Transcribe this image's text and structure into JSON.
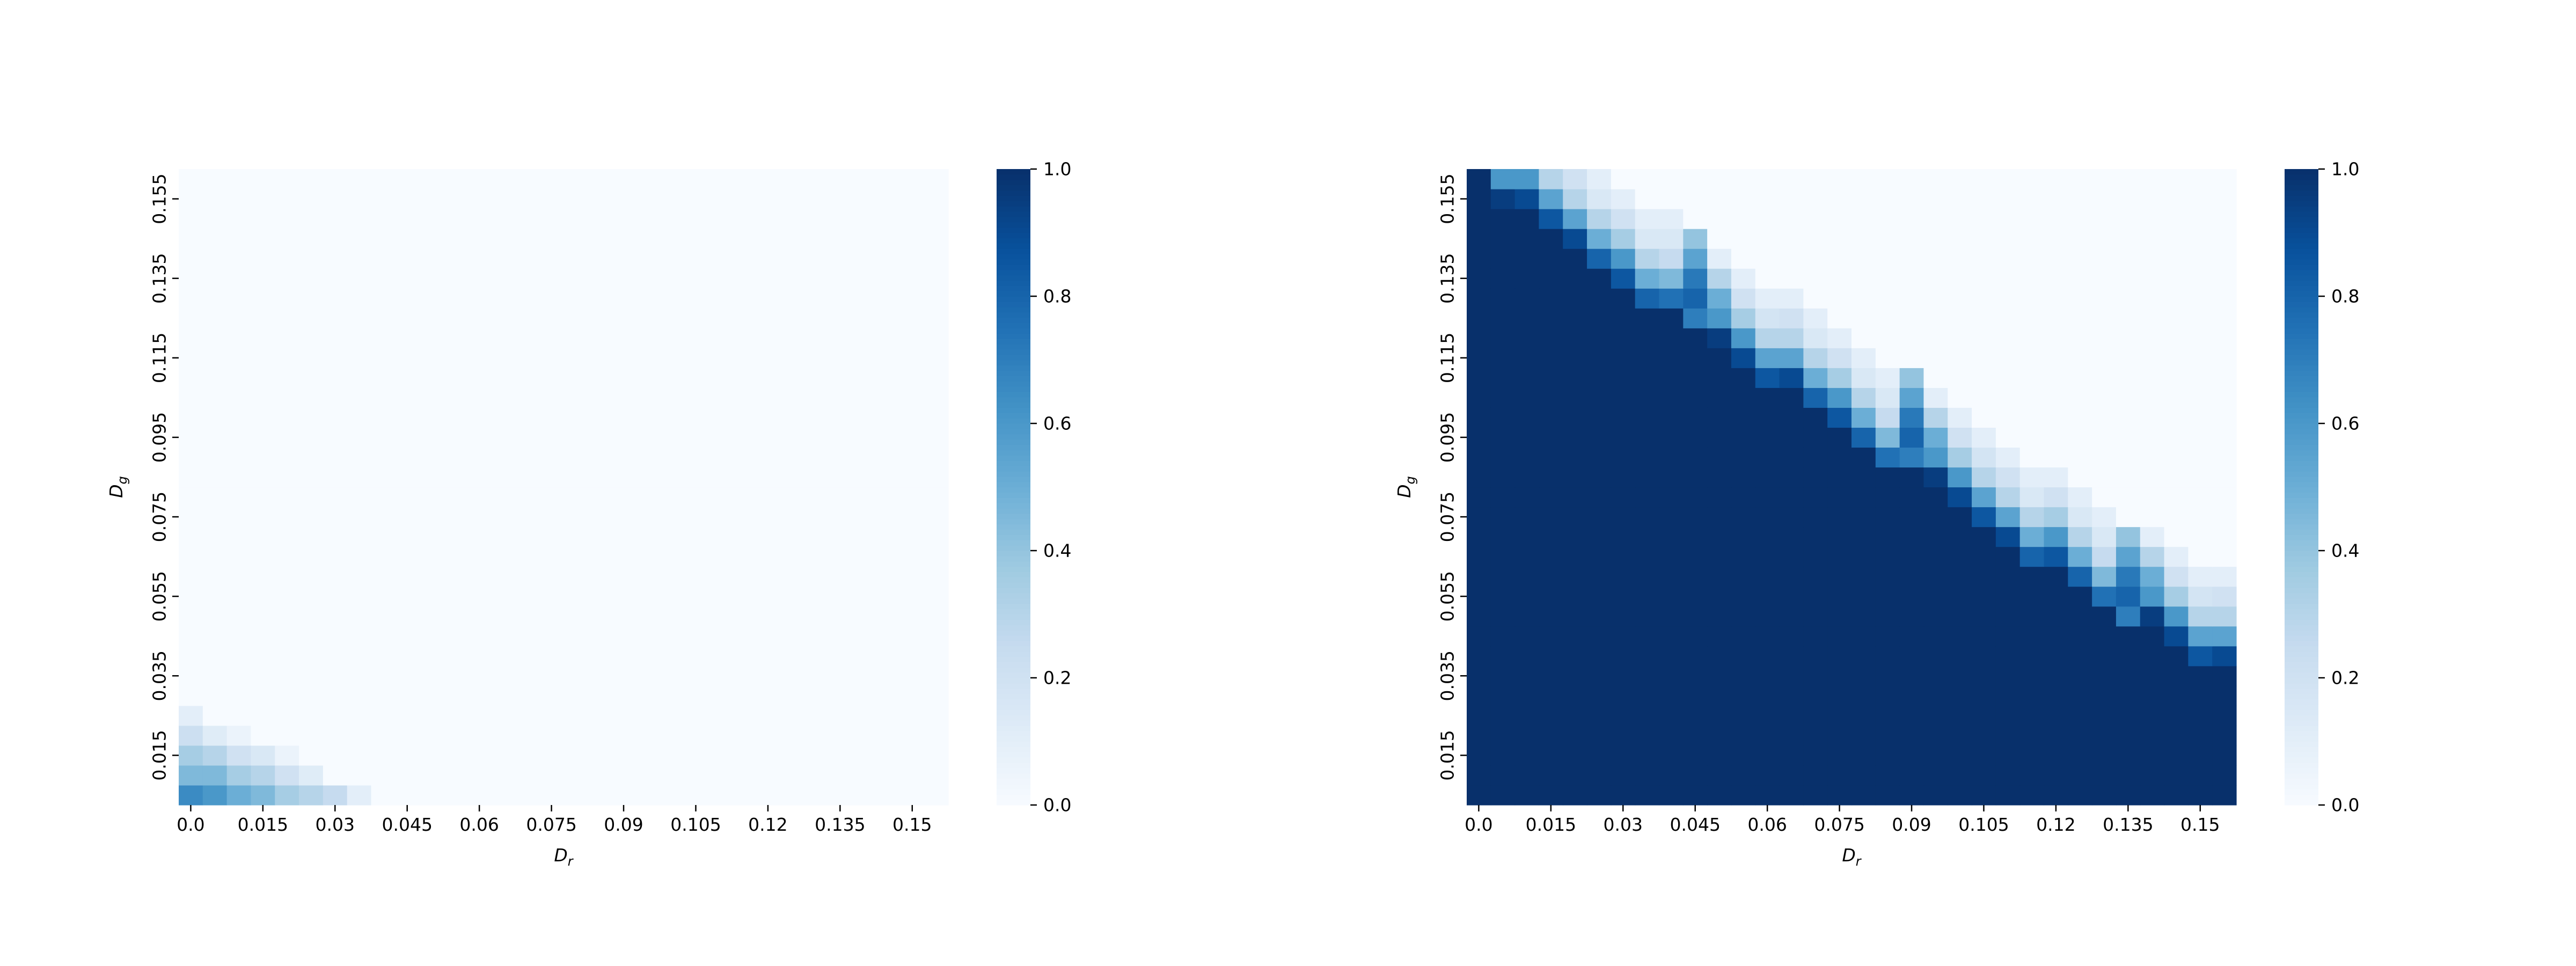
{
  "chart_data": [
    {
      "type": "heatmap",
      "title": "",
      "xlabel": "D_r",
      "ylabel": "D_g",
      "x_tick_labels": [
        "0.0",
        "0.015",
        "0.03",
        "0.045",
        "0.06",
        "0.075",
        "0.09",
        "0.105",
        "0.12",
        "0.135",
        "0.15"
      ],
      "y_tick_labels": [
        "0.015",
        "0.035",
        "0.055",
        "0.075",
        "0.095",
        "0.115",
        "0.135",
        "0.155"
      ],
      "grid_cols": 32,
      "grid_rows": 32,
      "colormap": "Blues",
      "colorbar": {
        "range": [
          0.0,
          1.0
        ],
        "tick_labels": [
          "0.0",
          "0.2",
          "0.4",
          "0.6",
          "0.8",
          "1.0"
        ]
      },
      "values_bottom_to_top": [
        [
          0.65,
          0.6,
          0.5,
          0.45,
          0.35,
          0.3,
          0.25,
          0.1
        ],
        [
          0.45,
          0.45,
          0.35,
          0.3,
          0.2,
          0.12
        ],
        [
          0.35,
          0.3,
          0.2,
          0.15,
          0.06
        ],
        [
          0.22,
          0.12,
          0.06
        ],
        [
          0.1
        ]
      ]
    },
    {
      "type": "heatmap",
      "title": "",
      "xlabel": "D_r",
      "ylabel": "D_g",
      "x_tick_labels": [
        "0.0",
        "0.015",
        "0.03",
        "0.045",
        "0.06",
        "0.075",
        "0.09",
        "0.105",
        "0.12",
        "0.135",
        "0.15"
      ],
      "y_tick_labels": [
        "0.015",
        "0.035",
        "0.055",
        "0.075",
        "0.095",
        "0.115",
        "0.135",
        "0.155"
      ],
      "grid_cols": 32,
      "grid_rows": 32,
      "colormap": "Blues",
      "colorbar": {
        "range": [
          0.0,
          1.0
        ],
        "tick_labels": [
          "0.0",
          "0.2",
          "0.4",
          "0.6",
          "0.8",
          "1.0"
        ]
      },
      "boundary_rows": [
        32,
        30,
        30,
        29,
        28,
        27,
        26,
        25,
        25,
        24,
        23,
        22,
        21,
        21,
        20,
        19,
        18,
        17,
        17,
        16,
        15,
        14,
        13,
        12,
        12,
        11,
        10,
        9,
        9,
        8,
        7,
        7
      ],
      "boundary_values": [
        [
          0.7,
          0.8,
          0.72,
          0.55,
          0.4
        ],
        [
          0.95,
          0.6,
          0.5,
          0.3,
          0.1
        ],
        [
          0.9,
          0.6,
          0.35,
          0.2,
          0.1
        ],
        [
          0.85,
          0.55,
          0.3,
          0.18,
          0.1
        ],
        [
          0.9,
          0.55,
          0.3,
          0.2,
          0.1
        ],
        [
          0.8,
          0.5,
          0.3,
          0.15,
          0.1
        ],
        [
          0.85,
          0.6,
          0.35,
          0.2,
          0.1
        ],
        [
          0.8,
          0.5,
          0.3,
          0.15,
          0.1
        ],
        [
          0.75,
          0.45,
          0.25,
          0.15,
          0.1
        ]
      ]
    }
  ]
}
